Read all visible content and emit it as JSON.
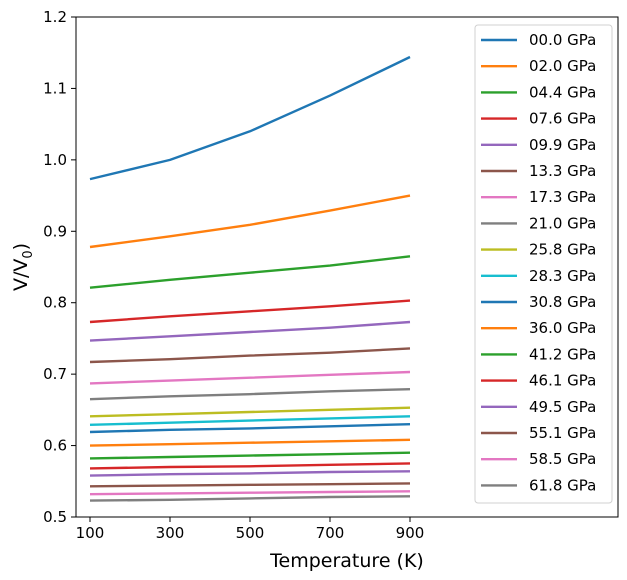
{
  "chart_data": {
    "type": "line",
    "title": "",
    "xlabel": "Temperature (K)",
    "ylabel_main": "V/V",
    "ylabel_sub": "0",
    "x": [
      100,
      300,
      500,
      700,
      900
    ],
    "xlim": [
      65,
      1420
    ],
    "ylim": [
      0.5,
      1.2
    ],
    "xticks": [
      100,
      300,
      500,
      700,
      900
    ],
    "xtick_labels": [
      "100",
      "300",
      "500",
      "700",
      "900"
    ],
    "yticks": [
      0.5,
      0.6,
      0.7,
      0.8,
      0.9,
      1.0,
      1.1,
      1.2
    ],
    "ytick_labels": [
      "0.5",
      "0.6",
      "0.7",
      "0.8",
      "0.9",
      "1.0",
      "1.1",
      "1.2"
    ],
    "grid": false,
    "legend_position": "right",
    "series": [
      {
        "name": "00.0 GPa",
        "color": "#1f77b4",
        "values": [
          0.973,
          1.0,
          1.04,
          1.09,
          1.144
        ]
      },
      {
        "name": "02.0 GPa",
        "color": "#ff7f0e",
        "values": [
          0.878,
          0.893,
          0.909,
          0.929,
          0.95
        ]
      },
      {
        "name": "04.4 GPa",
        "color": "#2ca02c",
        "values": [
          0.821,
          0.832,
          0.842,
          0.852,
          0.865
        ]
      },
      {
        "name": "07.6 GPa",
        "color": "#d62728",
        "values": [
          0.773,
          0.781,
          0.788,
          0.795,
          0.803
        ]
      },
      {
        "name": "09.9 GPa",
        "color": "#9467bd",
        "values": [
          0.747,
          0.753,
          0.759,
          0.765,
          0.773
        ]
      },
      {
        "name": "13.3 GPa",
        "color": "#8c564b",
        "values": [
          0.717,
          0.721,
          0.726,
          0.73,
          0.736
        ]
      },
      {
        "name": "17.3 GPa",
        "color": "#e377c2",
        "values": [
          0.687,
          0.691,
          0.695,
          0.699,
          0.703
        ]
      },
      {
        "name": "21.0 GPa",
        "color": "#7f7f7f",
        "values": [
          0.665,
          0.669,
          0.672,
          0.676,
          0.679
        ]
      },
      {
        "name": "25.8 GPa",
        "color": "#bcbd22",
        "values": [
          0.641,
          0.644,
          0.647,
          0.65,
          0.653
        ]
      },
      {
        "name": "28.3 GPa",
        "color": "#17becf",
        "values": [
          0.629,
          0.632,
          0.635,
          0.638,
          0.641
        ]
      },
      {
        "name": "30.8 GPa",
        "color": "#1f77b4",
        "values": [
          0.619,
          0.622,
          0.624,
          0.627,
          0.63
        ]
      },
      {
        "name": "36.0 GPa",
        "color": "#ff7f0e",
        "values": [
          0.6,
          0.602,
          0.604,
          0.606,
          0.608
        ]
      },
      {
        "name": "41.2 GPa",
        "color": "#2ca02c",
        "values": [
          0.582,
          0.584,
          0.586,
          0.588,
          0.59
        ]
      },
      {
        "name": "46.1 GPa",
        "color": "#d62728",
        "values": [
          0.568,
          0.57,
          0.571,
          0.573,
          0.575
        ]
      },
      {
        "name": "49.5 GPa",
        "color": "#9467bd",
        "values": [
          0.558,
          0.56,
          0.561,
          0.563,
          0.564
        ]
      },
      {
        "name": "55.1 GPa",
        "color": "#8c564b",
        "values": [
          0.543,
          0.544,
          0.545,
          0.546,
          0.547
        ]
      },
      {
        "name": "58.5 GPa",
        "color": "#e377c2",
        "values": [
          0.532,
          0.533,
          0.534,
          0.535,
          0.536
        ]
      },
      {
        "name": "61.8 GPa",
        "color": "#7f7f7f",
        "values": [
          0.523,
          0.524,
          0.526,
          0.528,
          0.529
        ]
      }
    ]
  }
}
